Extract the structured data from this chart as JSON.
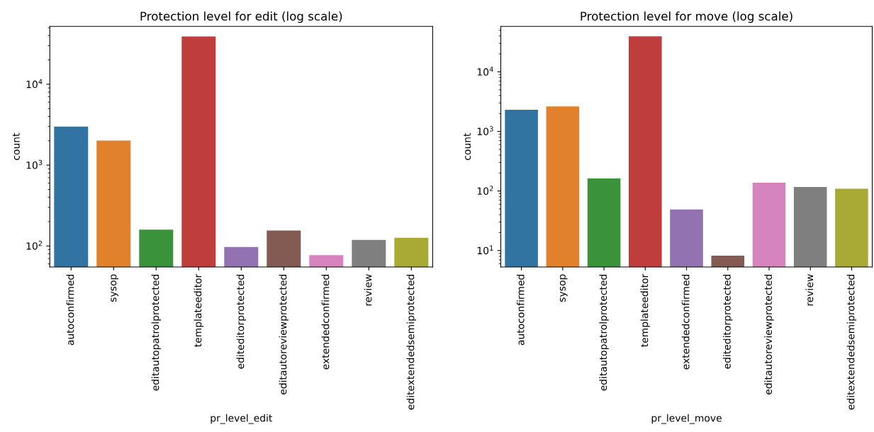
{
  "chart_data": [
    {
      "type": "bar",
      "title": "Protection level for edit (log scale)",
      "xlabel": "pr_level_edit",
      "ylabel": "count",
      "log": "y",
      "grid": false,
      "categories": [
        "autoconfirmed",
        "sysop",
        "editautopatrolprotected",
        "templateeditor",
        "editeditorprotected",
        "editautoreviewprotected",
        "extendedconfirmed",
        "review",
        "editextendedsemiprotected"
      ],
      "values": [
        3000,
        2010,
        159,
        39000,
        97,
        155,
        77,
        119,
        126
      ],
      "colors": [
        "#3274a1",
        "#e1812c",
        "#3a923a",
        "#c03d3e",
        "#9372b2",
        "#845b53",
        "#d684bd",
        "#7f7f7f",
        "#a9aa35"
      ],
      "ylim": [
        55,
        52000
      ],
      "yticks": [
        {
          "value": 100,
          "label": "10$^{2}$"
        },
        {
          "value": 1000,
          "label": "10$^{3}$"
        },
        {
          "value": 10000,
          "label": "10$^{4}$"
        }
      ]
    },
    {
      "type": "bar",
      "title": "Protection level for move (log scale)",
      "xlabel": "pr_level_move",
      "ylabel": "count",
      "log": "y",
      "grid": false,
      "categories": [
        "autoconfirmed",
        "sysop",
        "editautopatrolprotected",
        "templateeditor",
        "extendedconfirmed",
        "editeditorprotected",
        "editautoreviewprotected",
        "review",
        "editextendedsemiprotected"
      ],
      "values": [
        2300,
        2620,
        162,
        39400,
        49,
        8.2,
        138,
        117,
        109
      ],
      "colors": [
        "#3274a1",
        "#e1812c",
        "#3a923a",
        "#c03d3e",
        "#9372b2",
        "#845b53",
        "#d684bd",
        "#7f7f7f",
        "#a9aa35"
      ],
      "ylim": [
        5.3,
        58000
      ],
      "yticks": [
        {
          "value": 10,
          "label": "10$^{1}$"
        },
        {
          "value": 100,
          "label": "10$^{2}$"
        },
        {
          "value": 1000,
          "label": "10$^{3}$"
        },
        {
          "value": 10000,
          "label": "10$^{4}$"
        }
      ]
    }
  ]
}
